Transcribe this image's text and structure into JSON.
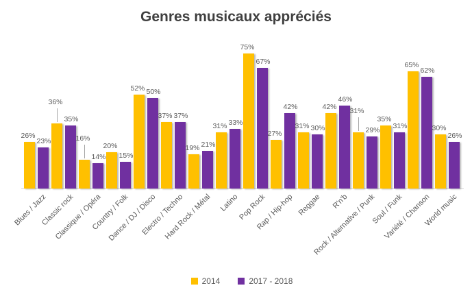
{
  "title": "Genres musicaux appréciés",
  "legend": {
    "items": [
      {
        "label": "2014",
        "color": "#FFC000"
      },
      {
        "label": "2017 - 2018",
        "color": "#7030A0"
      }
    ]
  },
  "colors": {
    "series_2014": "#FFC000",
    "series_2017_2018": "#7030A0",
    "title_text": "#404040",
    "label_text": "#595959",
    "axis_line": "#d9d9d9"
  },
  "chart_data": {
    "type": "bar",
    "title": "Genres musicaux appréciés",
    "categories": [
      "Blues / Jazz",
      "Classic rock",
      "Classique / Opéra",
      "Country / Folk",
      "Dance / DJ / Disco",
      "Electro / Techno",
      "Hard Rock / Métal",
      "Latino",
      "Pop Rock",
      "Rap / Hip-hop",
      "Reggae",
      "R'n'b",
      "Rock / Alternative / Punk",
      "Soul / Funk",
      "Variété / Chanson",
      "World music"
    ],
    "series": [
      {
        "name": "2014",
        "color": "#FFC000",
        "values": [
          26,
          36,
          16,
          20,
          52,
          37,
          19,
          31,
          75,
          27,
          31,
          42,
          31,
          35,
          65,
          30
        ]
      },
      {
        "name": "2017 - 2018",
        "color": "#7030A0",
        "values": [
          23,
          35,
          14,
          15,
          50,
          37,
          21,
          33,
          67,
          42,
          30,
          46,
          29,
          31,
          62,
          26
        ]
      }
    ],
    "data_label_suffix": "%",
    "xlabel": "",
    "ylabel": "",
    "ylim": [
      0,
      80
    ],
    "grid": false,
    "y_axis_visible": false,
    "legend_position": "bottom",
    "x_tick_rotation_deg": 45,
    "raised_first_series_label_indices": [
      1,
      2,
      12
    ]
  }
}
